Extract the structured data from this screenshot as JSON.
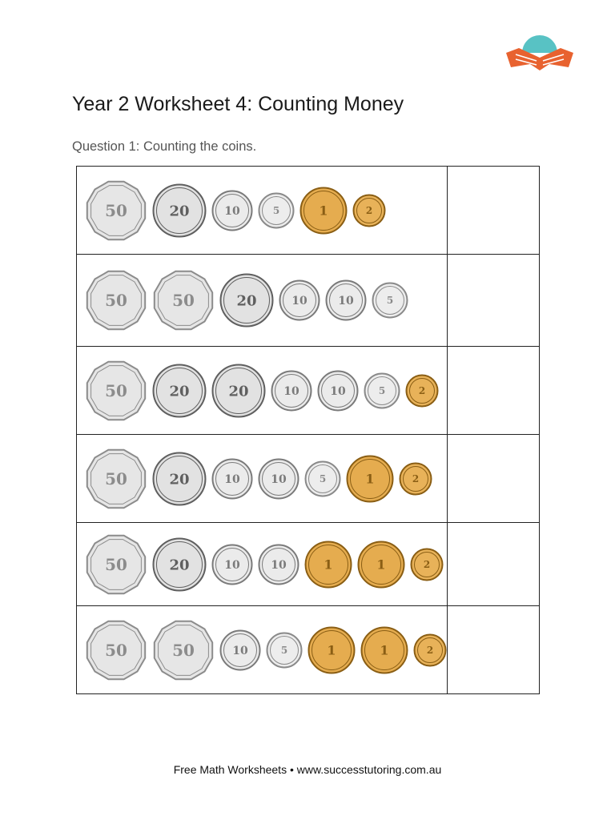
{
  "header": {
    "title": "Year 2 Worksheet 4: Counting Money",
    "question": "Question 1: Counting the coins.",
    "logo_icon": "open-book-logo-icon"
  },
  "colors": {
    "logo_orange": "#e8622f",
    "logo_teal": "#58c2c4",
    "silver": "#e6e6e6",
    "gold": "#e5ac4f"
  },
  "coin_labels": {
    "50c": "50",
    "20c": "20",
    "10c": "10",
    "5c": "5",
    "$1": "1",
    "$2": "2"
  },
  "rows": [
    {
      "coins": [
        "50c",
        "20c",
        "10c",
        "5c",
        "$1",
        "$2"
      ],
      "answer": ""
    },
    {
      "coins": [
        "50c",
        "50c",
        "20c",
        "10c",
        "10c",
        "5c"
      ],
      "answer": ""
    },
    {
      "coins": [
        "50c",
        "20c",
        "20c",
        "10c",
        "10c",
        "5c",
        "$2"
      ],
      "answer": ""
    },
    {
      "coins": [
        "50c",
        "20c",
        "10c",
        "10c",
        "5c",
        "$1",
        "$2"
      ],
      "answer": ""
    },
    {
      "coins": [
        "50c",
        "20c",
        "10c",
        "10c",
        "$1",
        "$1",
        "$2"
      ],
      "answer": ""
    },
    {
      "coins": [
        "50c",
        "50c",
        "10c",
        "5c",
        "$1",
        "$1",
        "$2"
      ],
      "answer": ""
    }
  ],
  "footer": "Free Math Worksheets • www.successtutoring.com.au"
}
